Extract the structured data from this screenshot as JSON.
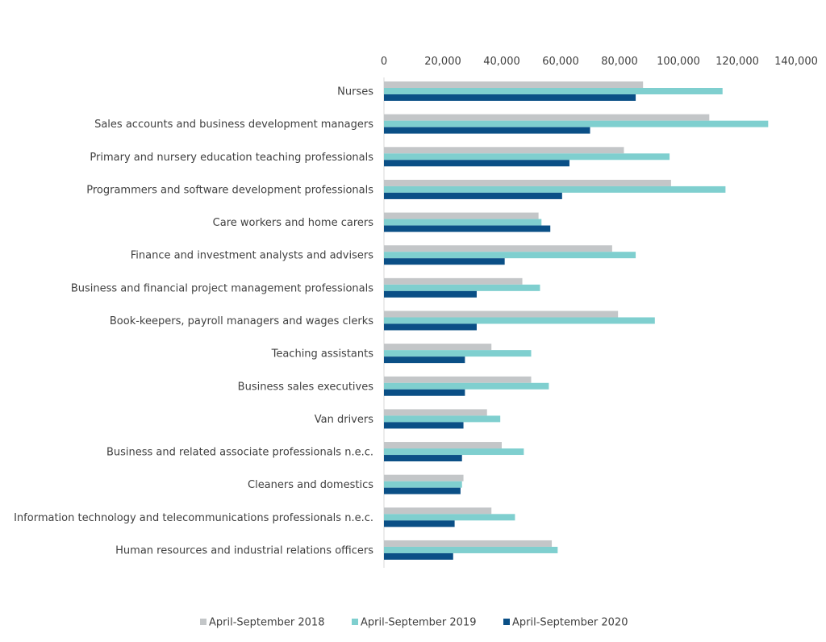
{
  "chart_data": {
    "type": "bar",
    "orientation": "horizontal",
    "title": "",
    "xlabel": "",
    "ylabel": "",
    "xlim": [
      0,
      140000
    ],
    "x_ticks": [
      0,
      20000,
      40000,
      60000,
      80000,
      100000,
      120000,
      140000
    ],
    "x_tick_labels": [
      "0",
      "20,000",
      "40,000",
      "60,000",
      "80,000",
      "100,000",
      "120,000",
      "140,000"
    ],
    "x_axis_position": "top",
    "grid": false,
    "legend_position": "bottom",
    "categories": [
      "Nurses",
      "Sales accounts and business development managers",
      "Primary and nursery education teaching professionals",
      "Programmers and software development professionals",
      "Care workers and home carers",
      "Finance and investment analysts and advisers",
      "Business and financial project management professionals",
      "Book-keepers, payroll managers and wages clerks",
      "Teaching assistants",
      "Business sales executives",
      "Van drivers",
      "Business and related associate professionals n.e.c.",
      "Cleaners and domestics",
      "Information technology and telecommunications professionals n.e.c.",
      "Human resources and industrial relations officers"
    ],
    "series": [
      {
        "name": "April-September 2018",
        "color": "#c3c6c8",
        "values": [
          88000,
          110500,
          81500,
          97500,
          52500,
          77500,
          47000,
          79500,
          36500,
          50000,
          35000,
          40000,
          27000,
          36500,
          57000
        ]
      },
      {
        "name": "April-September 2019",
        "color": "#7fcfcf",
        "values": [
          115000,
          130500,
          97000,
          116000,
          53500,
          85500,
          53000,
          92000,
          50000,
          56000,
          39500,
          47500,
          26500,
          44500,
          59000
        ]
      },
      {
        "name": "April-September 2020",
        "color": "#0a4f86",
        "values": [
          85500,
          70000,
          63000,
          60500,
          56500,
          41000,
          31500,
          31500,
          27500,
          27500,
          27000,
          26500,
          26000,
          24000,
          23500
        ]
      }
    ]
  }
}
